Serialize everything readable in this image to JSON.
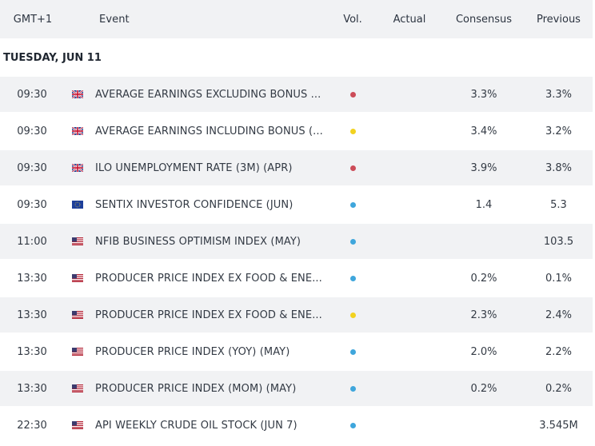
{
  "header": {
    "timezone": "GMT+1",
    "event": "Event",
    "vol": "Vol.",
    "actual": "Actual",
    "consensus": "Consensus",
    "previous": "Previous"
  },
  "date_label": "TUESDAY, JUN 11",
  "colors": {
    "high": "#cc4c58",
    "medium": "#f2d21f",
    "low": "#3fa6dc"
  },
  "rows": [
    {
      "time": "09:30",
      "flag": "uk-flag-icon",
      "event": "AVERAGE EARNINGS EXCLUDING BONUS ...",
      "volatility": "high",
      "actual": "",
      "consensus": "3.3%",
      "previous": "3.3%"
    },
    {
      "time": "09:30",
      "flag": "uk-flag-icon",
      "event": "AVERAGE EARNINGS INCLUDING BONUS (...",
      "volatility": "medium",
      "actual": "",
      "consensus": "3.4%",
      "previous": "3.2%"
    },
    {
      "time": "09:30",
      "flag": "uk-flag-icon",
      "event": "ILO UNEMPLOYMENT RATE (3M) (APR)",
      "volatility": "high",
      "actual": "",
      "consensus": "3.9%",
      "previous": "3.8%"
    },
    {
      "time": "09:30",
      "flag": "eu-flag-icon",
      "event": "SENTIX INVESTOR CONFIDENCE (JUN)",
      "volatility": "low",
      "actual": "",
      "consensus": "1.4",
      "previous": "5.3"
    },
    {
      "time": "11:00",
      "flag": "us-flag-icon",
      "event": "NFIB BUSINESS OPTIMISM INDEX (MAY)",
      "volatility": "low",
      "actual": "",
      "consensus": "",
      "previous": "103.5"
    },
    {
      "time": "13:30",
      "flag": "us-flag-icon",
      "event": "PRODUCER PRICE INDEX EX FOOD & ENE...",
      "volatility": "low",
      "actual": "",
      "consensus": "0.2%",
      "previous": "0.1%"
    },
    {
      "time": "13:30",
      "flag": "us-flag-icon",
      "event": "PRODUCER PRICE INDEX EX FOOD & ENE...",
      "volatility": "medium",
      "actual": "",
      "consensus": "2.3%",
      "previous": "2.4%"
    },
    {
      "time": "13:30",
      "flag": "us-flag-icon",
      "event": "PRODUCER PRICE INDEX (YOY) (MAY)",
      "volatility": "low",
      "actual": "",
      "consensus": "2.0%",
      "previous": "2.2%"
    },
    {
      "time": "13:30",
      "flag": "us-flag-icon",
      "event": "PRODUCER PRICE INDEX (MOM) (MAY)",
      "volatility": "low",
      "actual": "",
      "consensus": "0.2%",
      "previous": "0.2%"
    },
    {
      "time": "22:30",
      "flag": "us-flag-icon",
      "event": "API WEEKLY CRUDE OIL STOCK (JUN 7)",
      "volatility": "low",
      "actual": "",
      "consensus": "",
      "previous": "3.545M"
    }
  ]
}
